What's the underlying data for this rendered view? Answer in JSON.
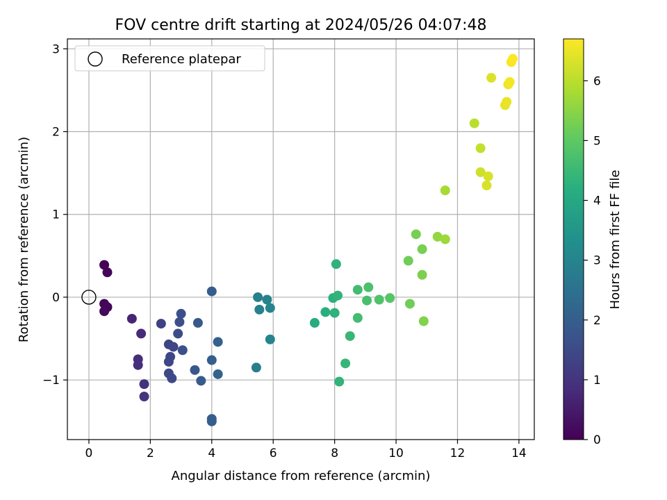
{
  "chart_data": {
    "type": "scatter",
    "title": "FOV centre drift starting at 2024/05/26 04:07:48",
    "xlabel": "Angular distance from reference (arcmin)",
    "ylabel": "Rotation from reference (arcmin)",
    "xlim": [
      -0.7,
      14.5
    ],
    "ylim": [
      -1.72,
      3.12
    ],
    "xticks": [
      0,
      2,
      4,
      6,
      8,
      10,
      12,
      14
    ],
    "yticks": [
      -1,
      0,
      1,
      2,
      3
    ],
    "xtick_labels": [
      "0",
      "2",
      "4",
      "6",
      "8",
      "10",
      "12",
      "14"
    ],
    "ytick_labels": [
      "−1",
      "0",
      "1",
      "2",
      "3"
    ],
    "grid": true,
    "legend": {
      "placement": "top-left",
      "entries": [
        {
          "label": "Reference platepar",
          "marker": "open-circle"
        }
      ]
    },
    "reference_point": {
      "x": 0,
      "y": 0
    },
    "colorbar": {
      "label": "Hours from first FF file",
      "colormap": "viridis",
      "range": [
        0,
        6.7
      ],
      "ticks": [
        0,
        1,
        2,
        3,
        4,
        5,
        6
      ],
      "tick_labels": [
        "0",
        "1",
        "2",
        "3",
        "4",
        "5",
        "6"
      ]
    },
    "points": [
      {
        "x": 0.5,
        "y": 0.39,
        "c": 0.05
      },
      {
        "x": 0.6,
        "y": 0.3,
        "c": 0.08
      },
      {
        "x": 0.5,
        "y": -0.08,
        "c": 0.1
      },
      {
        "x": 0.6,
        "y": -0.12,
        "c": 0.12
      },
      {
        "x": 0.5,
        "y": -0.17,
        "c": 0.15
      },
      {
        "x": 1.4,
        "y": -0.26,
        "c": 0.7
      },
      {
        "x": 1.7,
        "y": -0.44,
        "c": 0.8
      },
      {
        "x": 1.6,
        "y": -0.75,
        "c": 0.85
      },
      {
        "x": 1.6,
        "y": -0.82,
        "c": 0.9
      },
      {
        "x": 1.8,
        "y": -1.05,
        "c": 0.95
      },
      {
        "x": 1.8,
        "y": -1.2,
        "c": 1.0
      },
      {
        "x": 2.35,
        "y": -0.32,
        "c": 1.3
      },
      {
        "x": 2.6,
        "y": -0.57,
        "c": 1.35
      },
      {
        "x": 2.75,
        "y": -0.6,
        "c": 1.4
      },
      {
        "x": 2.65,
        "y": -0.72,
        "c": 1.4
      },
      {
        "x": 2.6,
        "y": -0.78,
        "c": 1.45
      },
      {
        "x": 2.6,
        "y": -0.92,
        "c": 1.5
      },
      {
        "x": 2.7,
        "y": -0.98,
        "c": 1.5
      },
      {
        "x": 2.9,
        "y": -0.44,
        "c": 1.55
      },
      {
        "x": 2.95,
        "y": -0.3,
        "c": 1.6
      },
      {
        "x": 3.0,
        "y": -0.2,
        "c": 1.6
      },
      {
        "x": 3.05,
        "y": -0.64,
        "c": 1.65
      },
      {
        "x": 3.45,
        "y": -0.88,
        "c": 1.8
      },
      {
        "x": 3.55,
        "y": -0.31,
        "c": 1.85
      },
      {
        "x": 3.65,
        "y": -1.01,
        "c": 1.9
      },
      {
        "x": 4.0,
        "y": 0.07,
        "c": 1.95
      },
      {
        "x": 4.0,
        "y": -0.76,
        "c": 2.0
      },
      {
        "x": 4.0,
        "y": -1.47,
        "c": 2.0
      },
      {
        "x": 4.0,
        "y": -1.5,
        "c": 2.0
      },
      {
        "x": 4.2,
        "y": -0.54,
        "c": 2.05
      },
      {
        "x": 4.2,
        "y": -0.93,
        "c": 2.1
      },
      {
        "x": 5.45,
        "y": -0.85,
        "c": 2.85
      },
      {
        "x": 5.5,
        "y": 0.0,
        "c": 2.9
      },
      {
        "x": 5.55,
        "y": -0.15,
        "c": 2.9
      },
      {
        "x": 5.8,
        "y": -0.03,
        "c": 2.95
      },
      {
        "x": 5.9,
        "y": -0.13,
        "c": 3.0
      },
      {
        "x": 5.9,
        "y": -0.51,
        "c": 3.0
      },
      {
        "x": 7.35,
        "y": -0.31,
        "c": 4.1
      },
      {
        "x": 7.7,
        "y": -0.18,
        "c": 4.2
      },
      {
        "x": 7.95,
        "y": -0.01,
        "c": 4.25
      },
      {
        "x": 8.0,
        "y": -0.19,
        "c": 4.3
      },
      {
        "x": 8.05,
        "y": 0.4,
        "c": 4.3
      },
      {
        "x": 8.1,
        "y": 0.02,
        "c": 4.35
      },
      {
        "x": 8.15,
        "y": -1.02,
        "c": 4.35
      },
      {
        "x": 8.35,
        "y": -0.8,
        "c": 4.4
      },
      {
        "x": 8.5,
        "y": -0.47,
        "c": 4.45
      },
      {
        "x": 8.75,
        "y": 0.09,
        "c": 4.6
      },
      {
        "x": 8.75,
        "y": -0.25,
        "c": 4.6
      },
      {
        "x": 9.05,
        "y": -0.04,
        "c": 4.7
      },
      {
        "x": 9.1,
        "y": 0.12,
        "c": 4.75
      },
      {
        "x": 9.45,
        "y": -0.03,
        "c": 4.8
      },
      {
        "x": 9.8,
        "y": -0.01,
        "c": 4.9
      },
      {
        "x": 10.4,
        "y": 0.44,
        "c": 5.2
      },
      {
        "x": 10.45,
        "y": -0.08,
        "c": 5.2
      },
      {
        "x": 10.65,
        "y": 0.76,
        "c": 5.3
      },
      {
        "x": 10.85,
        "y": 0.58,
        "c": 5.3
      },
      {
        "x": 10.85,
        "y": 0.27,
        "c": 5.35
      },
      {
        "x": 10.9,
        "y": -0.29,
        "c": 5.4
      },
      {
        "x": 11.35,
        "y": 0.73,
        "c": 5.6
      },
      {
        "x": 11.6,
        "y": 0.7,
        "c": 5.7
      },
      {
        "x": 11.6,
        "y": 1.29,
        "c": 5.8
      },
      {
        "x": 12.55,
        "y": 2.1,
        "c": 6.0
      },
      {
        "x": 12.75,
        "y": 1.8,
        "c": 6.1
      },
      {
        "x": 12.75,
        "y": 1.51,
        "c": 6.2
      },
      {
        "x": 12.95,
        "y": 1.35,
        "c": 6.3
      },
      {
        "x": 13.0,
        "y": 1.46,
        "c": 6.3
      },
      {
        "x": 13.1,
        "y": 2.65,
        "c": 6.35
      },
      {
        "x": 13.55,
        "y": 2.32,
        "c": 6.45
      },
      {
        "x": 13.6,
        "y": 2.36,
        "c": 6.5
      },
      {
        "x": 13.65,
        "y": 2.57,
        "c": 6.55
      },
      {
        "x": 13.7,
        "y": 2.6,
        "c": 6.6
      },
      {
        "x": 13.75,
        "y": 2.84,
        "c": 6.65
      },
      {
        "x": 13.8,
        "y": 2.88,
        "c": 6.7
      }
    ]
  }
}
